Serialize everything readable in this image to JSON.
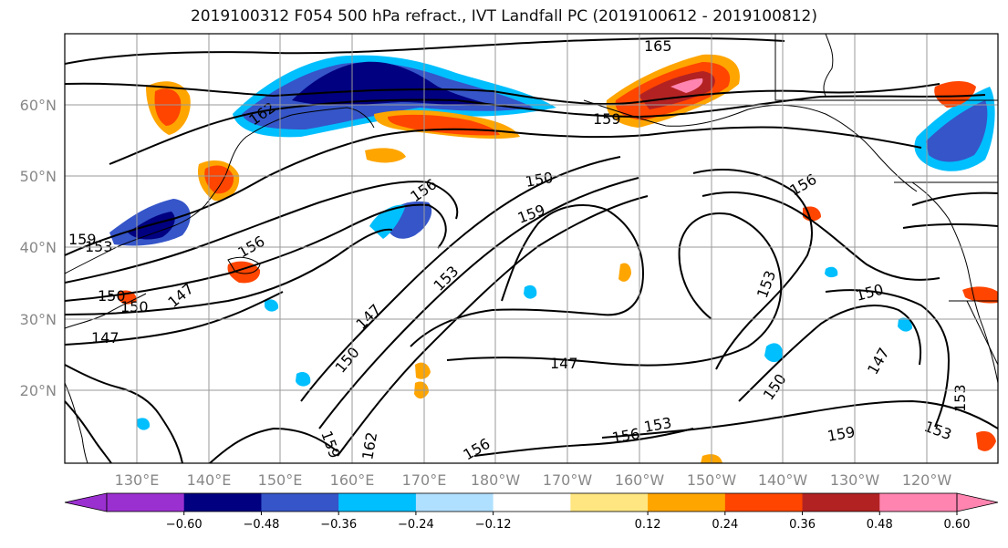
{
  "title": "2019100312 F054 500 hPa refract., IVT Landfall PC (2019100612 - 2019100812)",
  "lat_labels": [
    "60°N",
    "50°N",
    "40°N",
    "30°N",
    "20°N"
  ],
  "lon_labels": [
    "130°E",
    "140°E",
    "150°E",
    "160°E",
    "170°E",
    "180°W",
    "170°W",
    "160°W",
    "150°W",
    "140°W",
    "130°W",
    "120°W"
  ],
  "contour_labels": [
    "165",
    "162",
    "159",
    "159",
    "156",
    "156",
    "156",
    "150",
    "159",
    "153",
    "150",
    "150",
    "147",
    "147",
    "153",
    "147",
    "150",
    "150",
    "147",
    "153",
    "147",
    "150",
    "153",
    "159",
    "156",
    "153",
    "162",
    "156",
    "153",
    "159"
  ],
  "colorbar": {
    "ticks": [
      "−0.60",
      "−0.48",
      "−0.36",
      "−0.24",
      "−0.12",
      "0.12",
      "0.24",
      "0.36",
      "0.48",
      "0.60"
    ],
    "colors": [
      "#9b30d0",
      "#000080",
      "#3555c8",
      "#00bfff",
      "#b0e0ff",
      "#ffffff",
      "#ffe680",
      "#ffa500",
      "#ff4500",
      "#b22222",
      "#ff85b0",
      "#ff85b0"
    ]
  }
}
